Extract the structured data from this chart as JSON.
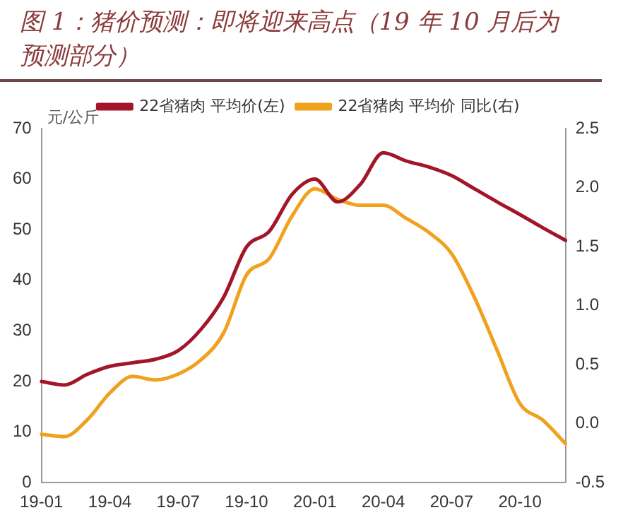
{
  "chart_data": {
    "type": "line",
    "title": "图 1：猪价预测：即将迎来高点（19 年 10 月后为预测部分）",
    "ylabel": "元/公斤",
    "categories": [
      "19-01",
      null,
      null,
      "19-04",
      null,
      null,
      "19-07",
      null,
      null,
      "19-10",
      null,
      null,
      "20-01",
      null,
      null,
      "20-04",
      null,
      null,
      "20-07",
      null,
      null,
      "20-10",
      null,
      null
    ],
    "series": [
      {
        "name": "22省猪肉 平均价(左)",
        "color": "#a3162a",
        "values": [
          20,
          19.3,
          21.4,
          23,
          23.7,
          24.4,
          26.1,
          30.3,
          36.7,
          46.6,
          49.7,
          57,
          60,
          55.5,
          59,
          65.2,
          63.6,
          62.4,
          60.7,
          58.1,
          55.5,
          53,
          50.4,
          47.9
        ]
      },
      {
        "name": "22省猪肉 平均价 同比(右)",
        "color": "#f0a11e",
        "axis": "y2",
        "values": [
          -0.09,
          -0.11,
          0.03,
          0.26,
          0.4,
          0.37,
          0.42,
          0.54,
          0.77,
          1.26,
          1.4,
          1.76,
          1.99,
          1.9,
          1.85,
          1.85,
          1.74,
          1.62,
          1.44,
          1.07,
          0.62,
          0.17,
          0.03,
          -0.17
        ]
      }
    ],
    "ylim": [
      0,
      70
    ],
    "yticks": [
      0,
      10,
      20,
      30,
      40,
      50,
      60,
      70
    ],
    "y2lim": [
      -0.5,
      2.5
    ],
    "y2ticks": [
      {
        "value": -0.5,
        "label": "-0.5"
      },
      {
        "value": 0,
        "label": "0.0"
      },
      {
        "value": 0.5,
        "label": "0.5"
      },
      {
        "value": 1,
        "label": "1.0"
      },
      {
        "value": 1.5,
        "label": "1.5"
      },
      {
        "value": 2,
        "label": "2.0"
      },
      {
        "value": 2.5,
        "label": "2.5"
      }
    ],
    "grid": false,
    "legend": "top",
    "marker": "none",
    "line_style": "solid"
  }
}
